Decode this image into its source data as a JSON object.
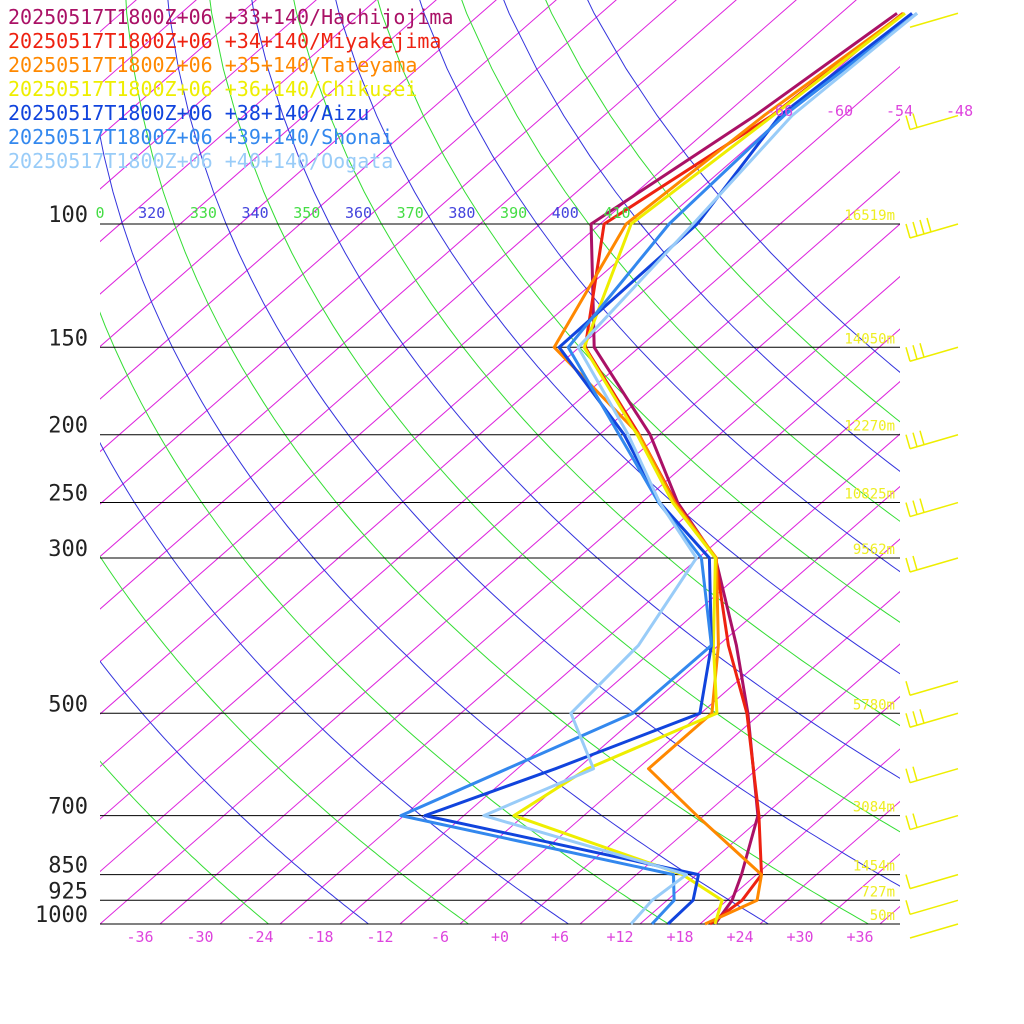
{
  "chart_data": {
    "type": "line",
    "title": "",
    "xlabel": "",
    "ylabel": "",
    "xlim": [
      -40,
      40
    ],
    "colors": {
      "temp_tick": "#dd44dd",
      "theta_label_green": "#44dd44",
      "theta_label_blue": "#4444dd",
      "isotherm_label": "#dd44dd",
      "height_label": "#eeee22",
      "wind_barb": "#eeee00"
    },
    "pressure_levels": [
      {
        "p": 100,
        "label": "100",
        "height": "16519m"
      },
      {
        "p": 150,
        "label": "150",
        "height": "14050m"
      },
      {
        "p": 200,
        "label": "200",
        "height": "12270m"
      },
      {
        "p": 250,
        "label": "250",
        "height": "10825m"
      },
      {
        "p": 300,
        "label": "300",
        "height": "9562m"
      },
      {
        "p": 500,
        "label": "500",
        "height": "5780m"
      },
      {
        "p": 700,
        "label": "700",
        "height": "3084m"
      },
      {
        "p": 850,
        "label": "850",
        "height": "1454m"
      },
      {
        "p": 925,
        "label": "925",
        "height": "727m"
      },
      {
        "p": 1000,
        "label": "1000",
        "height": "50m"
      }
    ],
    "x_ticks": [
      {
        "v": -36,
        "label": "-36"
      },
      {
        "v": -30,
        "label": "-30"
      },
      {
        "v": -24,
        "label": "-24"
      },
      {
        "v": -18,
        "label": "-18"
      },
      {
        "v": -12,
        "label": "-12"
      },
      {
        "v": -6,
        "label": "-6"
      },
      {
        "v": 0,
        "label": "+0"
      },
      {
        "v": 6,
        "label": "+6"
      },
      {
        "v": 12,
        "label": "+12"
      },
      {
        "v": 18,
        "label": "+18"
      },
      {
        "v": 24,
        "label": "+24"
      },
      {
        "v": 30,
        "label": "+30"
      },
      {
        "v": 36,
        "label": "+36"
      }
    ],
    "theta_labels": [
      {
        "label": "0",
        "color": "#44dd44"
      },
      {
        "label": "320",
        "color": "#4444dd"
      },
      {
        "label": "330",
        "color": "#44dd44"
      },
      {
        "label": "340",
        "color": "#4444dd"
      },
      {
        "label": "350",
        "color": "#44dd44"
      },
      {
        "label": "360",
        "color": "#4444dd"
      },
      {
        "label": "370",
        "color": "#44dd44"
      },
      {
        "label": "380",
        "color": "#4444dd"
      },
      {
        "label": "390",
        "color": "#44dd44"
      },
      {
        "label": "400",
        "color": "#4444dd"
      },
      {
        "label": "410",
        "color": "#44dd44"
      }
    ],
    "isotherm_top_labels": [
      "-66",
      "-60",
      "-54",
      "-48"
    ],
    "series": [
      {
        "name": "20250517T1800Z+06 +33+140/Hachijojima",
        "color": "#aa1166",
        "points": [
          [
            1000,
            21.5
          ],
          [
            925,
            20.5
          ],
          [
            850,
            18.5
          ],
          [
            700,
            13.4
          ],
          [
            500,
            0.7
          ],
          [
            400,
            -8.2
          ],
          [
            300,
            -20.3
          ],
          [
            250,
            -30.4
          ],
          [
            200,
            -40.9
          ],
          [
            150,
            -56.5
          ],
          [
            100,
            -70.9
          ],
          [
            70,
            -66.9
          ],
          [
            50,
            -64.4
          ]
        ]
      },
      {
        "name": "20250517T1800Z+06 +34+140/Miyakejima",
        "color": "#ee2211",
        "points": [
          [
            1000,
            21
          ],
          [
            925,
            21.5
          ],
          [
            850,
            20.5
          ],
          [
            700,
            13.5
          ],
          [
            500,
            0.6
          ],
          [
            400,
            -9
          ],
          [
            300,
            -20.3
          ],
          [
            250,
            -30.6
          ],
          [
            200,
            -42
          ],
          [
            150,
            -57.4
          ],
          [
            100,
            -69.6
          ],
          [
            70,
            -65.2
          ],
          [
            50,
            -63.8
          ]
        ]
      },
      {
        "name": "20250517T1800Z+06 +35+140/Tateyama",
        "color": "#ff8800",
        "points": [
          [
            1000,
            20.5
          ],
          [
            925,
            23
          ],
          [
            850,
            20.5
          ],
          [
            700,
            7.3
          ],
          [
            600,
            -2.9
          ],
          [
            500,
            -2.9
          ],
          [
            400,
            -10
          ],
          [
            300,
            -20.2
          ],
          [
            250,
            -30.7
          ],
          [
            200,
            -42
          ],
          [
            150,
            -60.5
          ],
          [
            100,
            -67.4
          ],
          [
            70,
            -66
          ],
          [
            50,
            -63.7
          ]
        ]
      },
      {
        "name": "20250517T1800Z+06 +36+140/Chikusei",
        "color": "#eeee00",
        "points": [
          [
            1000,
            21.5
          ],
          [
            925,
            19.5
          ],
          [
            850,
            12.6
          ],
          [
            700,
            -11
          ],
          [
            600,
            -9
          ],
          [
            500,
            -2.4
          ],
          [
            400,
            -10.5
          ],
          [
            300,
            -20.3
          ],
          [
            250,
            -30.9
          ],
          [
            200,
            -42.2
          ],
          [
            150,
            -57.5
          ],
          [
            100,
            -66.9
          ],
          [
            70,
            -65.1
          ],
          [
            50,
            -63.6
          ]
        ]
      },
      {
        "name": "20250517T1800Z+06 +38+140/Aizu",
        "color": "#1144dd",
        "points": [
          [
            1000,
            16.8
          ],
          [
            925,
            16.6
          ],
          [
            850,
            14.2
          ],
          [
            700,
            -19.9
          ],
          [
            600,
            -12.2
          ],
          [
            500,
            -4.1
          ],
          [
            400,
            -10.7
          ],
          [
            300,
            -20.9
          ],
          [
            250,
            -32.2
          ],
          [
            200,
            -43.5
          ],
          [
            150,
            -60
          ],
          [
            100,
            -60.3
          ],
          [
            70,
            -64.4
          ],
          [
            50,
            -62.9
          ]
        ]
      },
      {
        "name": "20250517T1800Z+06 +39+140/Shonai",
        "color": "#3388ee",
        "points": [
          [
            1000,
            15.2
          ],
          [
            925,
            14.7
          ],
          [
            850,
            11.7
          ],
          [
            700,
            -22.3
          ],
          [
            500,
            -10.8
          ],
          [
            400,
            -10.7
          ],
          [
            300,
            -21.7
          ],
          [
            250,
            -32.3
          ],
          [
            200,
            -44
          ],
          [
            150,
            -59.1
          ],
          [
            100,
            -63.1
          ],
          [
            70,
            -64
          ],
          [
            50,
            -62.4
          ]
        ]
      },
      {
        "name": "20250517T1800Z+06 +40+140/Oogata",
        "color": "#99ccf8",
        "points": [
          [
            1000,
            13.1
          ],
          [
            925,
            12.5
          ],
          [
            850,
            13
          ],
          [
            700,
            -14
          ],
          [
            600,
            -8.4
          ],
          [
            500,
            -17
          ],
          [
            400,
            -18
          ],
          [
            300,
            -22.2
          ],
          [
            250,
            -32.2
          ],
          [
            200,
            -43.1
          ],
          [
            150,
            -58.1
          ],
          [
            100,
            -60.7
          ],
          [
            70,
            -63.2
          ],
          [
            50,
            -62.4
          ]
        ]
      }
    ],
    "wind_barbs": [
      {
        "p": 50,
        "barbs": 0,
        "pennant": false
      },
      {
        "p": 70,
        "barbs": 2,
        "pennant": false
      },
      {
        "p": 100,
        "barbs": 4,
        "pennant": false
      },
      {
        "p": 150,
        "barbs": 3,
        "pennant": false
      },
      {
        "p": 200,
        "barbs": 3,
        "pennant": false
      },
      {
        "p": 250,
        "barbs": 3,
        "pennant": false
      },
      {
        "p": 300,
        "barbs": 2,
        "pennant": false
      },
      {
        "p": 450,
        "barbs": 1,
        "pennant": false
      },
      {
        "p": 500,
        "barbs": 3,
        "pennant": false
      },
      {
        "p": 600,
        "barbs": 2,
        "pennant": false
      },
      {
        "p": 700,
        "barbs": 2,
        "pennant": false
      },
      {
        "p": 850,
        "barbs": 1,
        "pennant": false
      },
      {
        "p": 925,
        "barbs": 1,
        "pennant": false
      },
      {
        "p": 1000,
        "barbs": 0,
        "pennant": false
      }
    ]
  }
}
